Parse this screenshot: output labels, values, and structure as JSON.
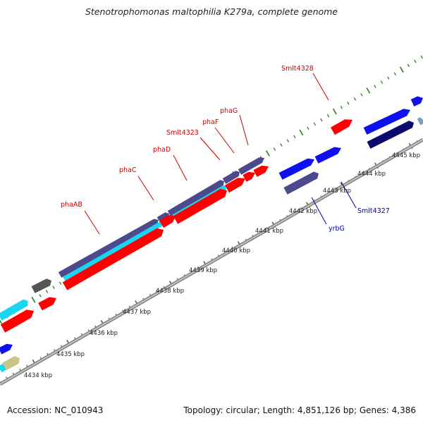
{
  "title": "Stenotrophomonas maltophilia K279a, complete genome",
  "footer": {
    "accession": "Accession: NC_010943",
    "topology": "Topology: circular; Length: 4,851,126 bp; Genes: 4,386"
  },
  "colors": {
    "background": "#ffffff",
    "backbone": "#8a8a8a",
    "tick": "#2e7d1e",
    "forward_label": "#cc0000",
    "reverse_label": "#0000aa",
    "red_gene": "#ff0000",
    "cyan_gene": "#19d6f0",
    "blue_gene": "#1010ee",
    "navy_gene": "#0a0a6e",
    "slate_gene": "#4a4a8c",
    "gray_gene": "#555555",
    "khaki_gene": "#c8c48e",
    "steel_gene": "#7aa0c0"
  },
  "scale_labels": [
    "4434 kbp",
    "4435 kbp",
    "4436 kbp",
    "4437 kbp",
    "4438 kbp",
    "4439 kbp",
    "4440 kbp",
    "4441 kbp",
    "4442 kbp",
    "4443 kbp",
    "4444 kbp",
    "4445 kbp"
  ],
  "forward_gene_labels": [
    "phaAB",
    "phaC",
    "phaD",
    "Smlt4323",
    "phaF",
    "phaG",
    "Smlt4328"
  ],
  "reverse_gene_labels": [
    "yrbG",
    "Smlt4327"
  ]
}
